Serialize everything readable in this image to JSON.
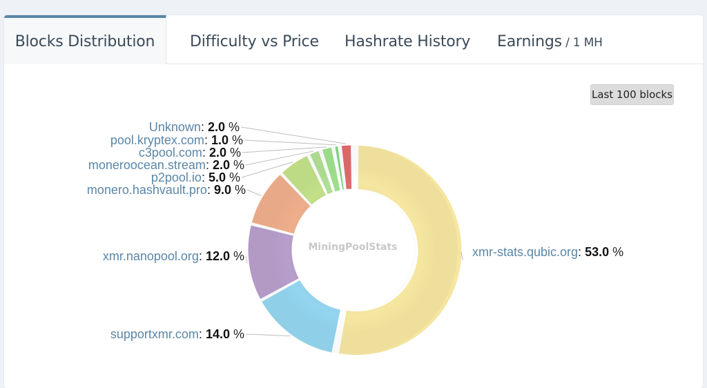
{
  "tabs": [
    {
      "label": "Blocks Distribution",
      "sub": ""
    },
    {
      "label": "Difficulty vs Price",
      "sub": ""
    },
    {
      "label": "Hashrate History",
      "sub": ""
    },
    {
      "label": "Earnings",
      "sub": " / 1 MH"
    }
  ],
  "range_button": "Last 100 blocks",
  "chart_data": {
    "type": "pie",
    "variant": "donut",
    "center_text": "MiningPoolStats",
    "unit": "%",
    "slices": [
      {
        "name": "xmr-stats.qubic.org",
        "value": 53.0,
        "color": "#f5e6a0"
      },
      {
        "name": "supportxmr.com",
        "value": 14.0,
        "color": "#93d5ef"
      },
      {
        "name": "xmr.nanopool.org",
        "value": 12.0,
        "color": "#b79ecb"
      },
      {
        "name": "monero.hashvault.pro",
        "value": 9.0,
        "color": "#eeae8c"
      },
      {
        "name": "p2pool.io",
        "value": 5.0,
        "color": "#c2e088"
      },
      {
        "name": "moneroocean.stream",
        "value": 2.0,
        "color": "#b0e094"
      },
      {
        "name": "c3pool.com",
        "value": 2.0,
        "color": "#9fe08c"
      },
      {
        "name": "pool.kryptex.com",
        "value": 1.0,
        "color": "#7ed884"
      },
      {
        "name": "Unknown",
        "value": 2.0,
        "color": "#e06b6b"
      }
    ]
  }
}
